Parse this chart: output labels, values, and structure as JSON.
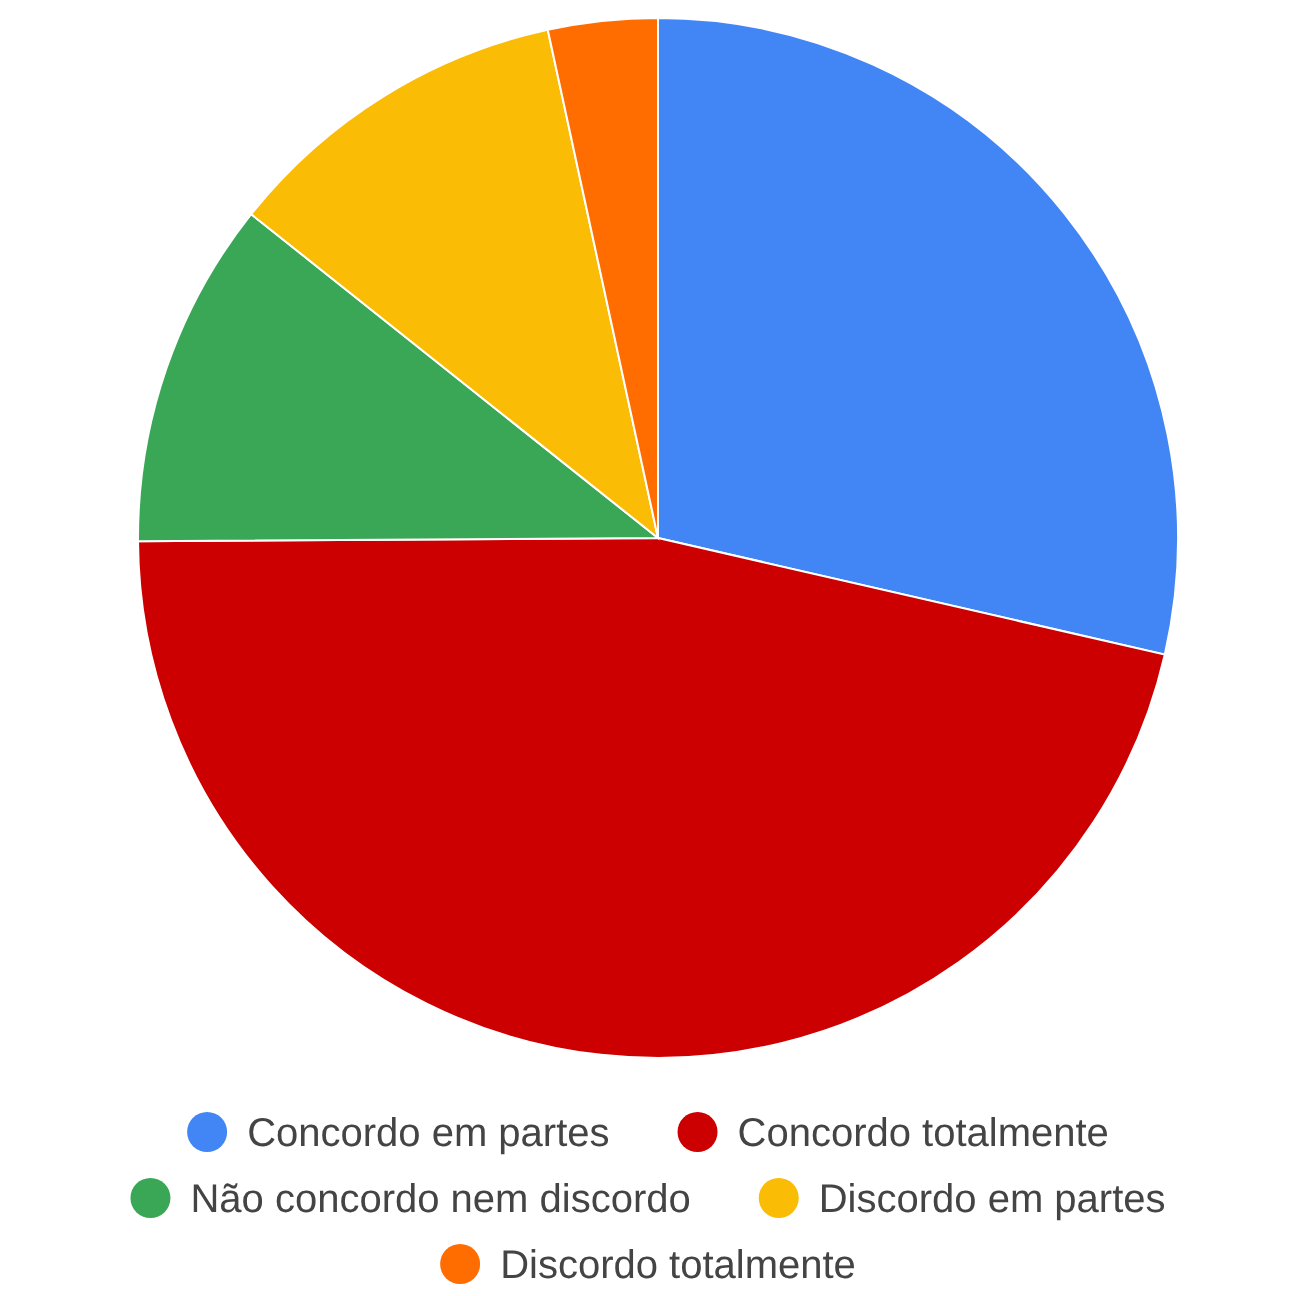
{
  "chart_data": {
    "type": "pie",
    "categories": [
      "Concordo em partes",
      "Concordo totalmente",
      "Não concordo nem discordo",
      "Discordo em partes",
      "Discordo totalmente"
    ],
    "values": [
      28.6,
      46.3,
      10.8,
      10.9,
      3.4
    ],
    "colors": [
      "#4285f4",
      "#cc0000",
      "#3aa757",
      "#fbbc05",
      "#ff6d01"
    ],
    "legend": "bottom"
  }
}
